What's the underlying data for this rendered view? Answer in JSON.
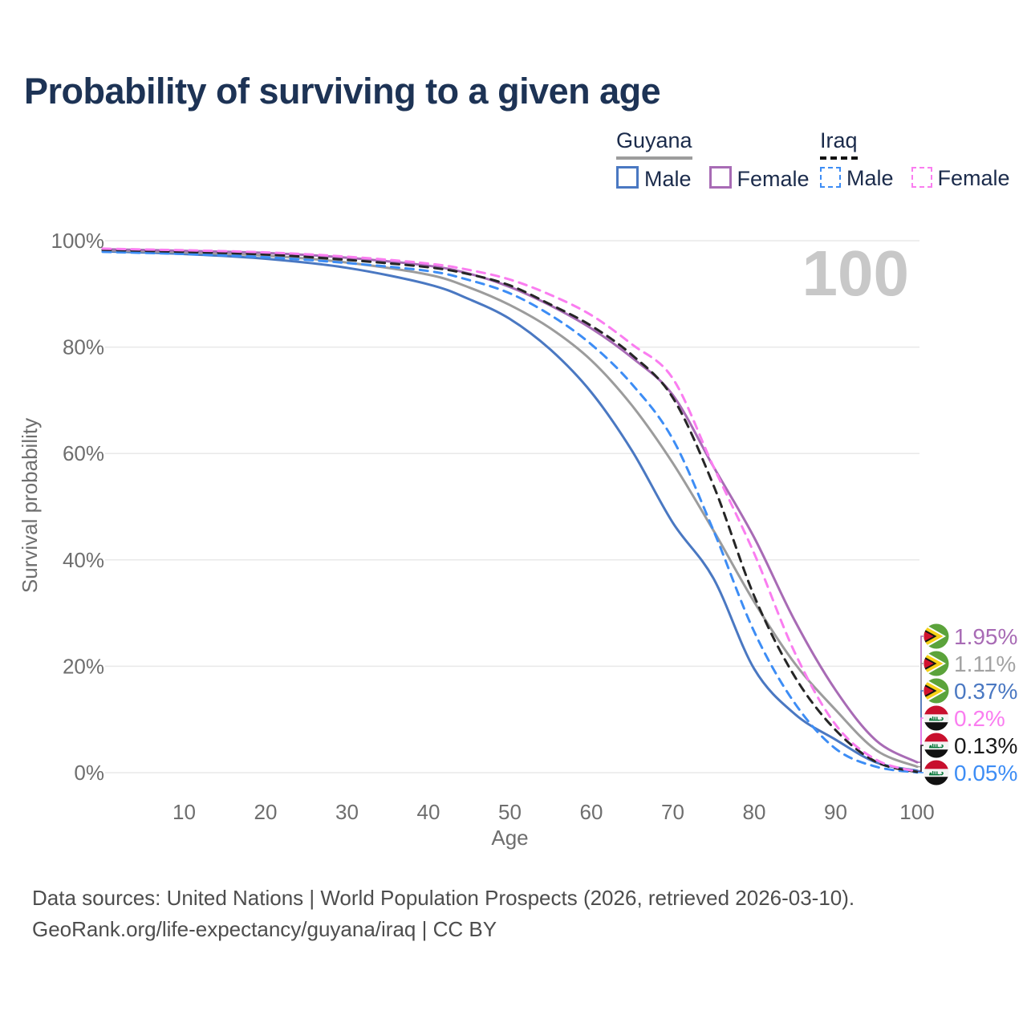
{
  "title": "Probability of surviving to a given age",
  "legend": {
    "groups": [
      {
        "country": "Guyana",
        "line_style": "solid",
        "items": [
          {
            "label": "Male",
            "color": "#4a78c2"
          },
          {
            "label": "Female",
            "color": "#a86bb5"
          }
        ]
      },
      {
        "country": "Iraq",
        "line_style": "dashed",
        "items": [
          {
            "label": "Male",
            "color": "#3d8df5"
          },
          {
            "label": "Female",
            "color": "#fa7df0"
          }
        ]
      }
    ]
  },
  "chart_data": {
    "type": "line",
    "title": "Probability of surviving to a given age",
    "xlabel": "Age",
    "ylabel": "Survival probability",
    "xlim": [
      0,
      100
    ],
    "ylim": [
      0,
      100
    ],
    "grid": "horizontal-only",
    "legend_position": "top-right",
    "x_ticks": [
      "10",
      "20",
      "30",
      "40",
      "50",
      "60",
      "70",
      "80",
      "90",
      "100"
    ],
    "y_ticks": [
      "0%",
      "20%",
      "40%",
      "60%",
      "80%",
      "100%"
    ],
    "watermark": "100",
    "x": [
      0,
      10,
      20,
      30,
      40,
      45,
      50,
      55,
      60,
      65,
      70,
      75,
      80,
      85,
      90,
      95,
      100
    ],
    "series": [
      {
        "name": "Guyana Male",
        "flag": "guyana",
        "color": "#4a78c2",
        "dash": false,
        "end_label": "0.37%",
        "values": [
          98.0,
          97.5,
          96.6,
          94.9,
          91.8,
          89.0,
          85.3,
          79.5,
          71.5,
          60.5,
          47.0,
          36.5,
          19.5,
          11.0,
          6.2,
          1.9,
          0.37
        ]
      },
      {
        "name": "Guyana",
        "flag": "guyana",
        "color": "#9c9c9c",
        "dash": false,
        "end_label": "1.11%",
        "label_color": "#a3a3a3",
        "values": [
          98.2,
          97.8,
          97.2,
          95.9,
          93.6,
          91.2,
          87.9,
          83.5,
          77.5,
          69.0,
          58.2,
          45.5,
          32.1,
          20.5,
          11.8,
          4.2,
          1.11
        ]
      },
      {
        "name": "Guyana Female",
        "flag": "guyana",
        "color": "#a86bb5",
        "dash": false,
        "end_label": "1.95%",
        "values": [
          98.4,
          98.1,
          97.7,
          96.8,
          95.3,
          93.8,
          91.3,
          87.8,
          83.5,
          78.0,
          71.0,
          57.5,
          44.2,
          28.5,
          15.5,
          6.0,
          1.95
        ]
      },
      {
        "name": "Iraq Male",
        "flag": "iraq",
        "color": "#3d8df5",
        "dash": true,
        "end_label": "0.05%",
        "values": [
          97.9,
          97.5,
          96.9,
          95.8,
          94.3,
          92.6,
          90.1,
          86.0,
          80.5,
          73.0,
          62.7,
          45.5,
          26.5,
          13.0,
          4.5,
          1.1,
          0.05
        ]
      },
      {
        "name": "Iraq",
        "flag": "iraq",
        "color": "#262626",
        "dash": true,
        "end_label": "0.13%",
        "label_color": "#1a1a1a",
        "values": [
          98.3,
          97.9,
          97.4,
          96.4,
          95.0,
          93.7,
          91.6,
          88.0,
          84.0,
          78.5,
          70.5,
          54.0,
          33.2,
          18.0,
          8.0,
          2.0,
          0.13
        ]
      },
      {
        "name": "Iraq Female",
        "flag": "iraq",
        "color": "#fa7df0",
        "dash": true,
        "end_label": "0.2%",
        "values": [
          98.5,
          98.2,
          97.8,
          97.0,
          95.7,
          94.5,
          92.7,
          89.8,
          86.0,
          80.5,
          74.1,
          57.5,
          41.2,
          22.5,
          9.0,
          2.4,
          0.2
        ]
      }
    ]
  },
  "footer": {
    "line1": "Data sources: United Nations | World Population Prospects (2026, retrieved 2026-03-10).",
    "line2": "GeoRank.org/life-expectancy/guyana/iraq | CC BY"
  },
  "colors": {
    "title_text": "#1d3355",
    "axis_text": "#6e6e6e",
    "gridline": "#e9e9e9",
    "watermark": "#c8c8c8",
    "footer_text": "#4d4d4d"
  }
}
